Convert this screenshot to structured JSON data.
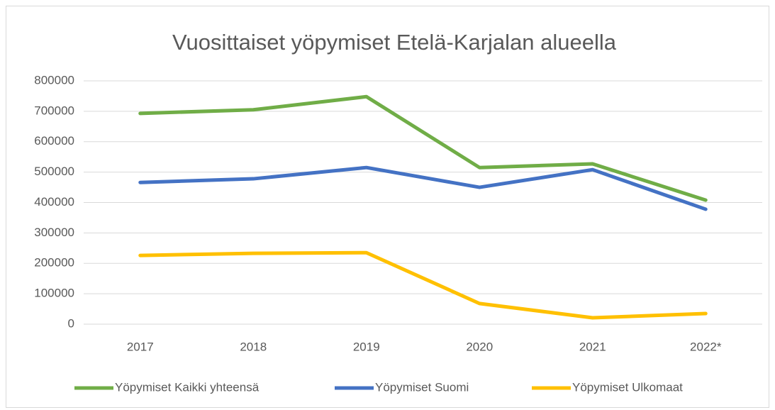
{
  "chart_data": {
    "type": "line",
    "title": "Vuosittaiset yöpymiset Etelä-Karjalan alueella",
    "categories": [
      "2017",
      "2018",
      "2019",
      "2020",
      "2021",
      "2022*"
    ],
    "series": [
      {
        "name": "Yöpymiset Kaikki yhteensä",
        "color": "#70ad47",
        "values": [
          693000,
          705000,
          748000,
          515000,
          527000,
          408000
        ]
      },
      {
        "name": "Yöpymiset Suomi",
        "color": "#4472c4",
        "values": [
          466000,
          478000,
          515000,
          450000,
          508000,
          378000
        ]
      },
      {
        "name": "Yöpymiset Ulkomaat",
        "color": "#ffc000",
        "values": [
          226000,
          233000,
          235000,
          68000,
          21000,
          35000
        ]
      }
    ],
    "ylim": [
      0,
      800000
    ],
    "yticks": [
      0,
      100000,
      200000,
      300000,
      400000,
      500000,
      600000,
      700000,
      800000
    ],
    "grid": true,
    "legend": "bottom"
  }
}
